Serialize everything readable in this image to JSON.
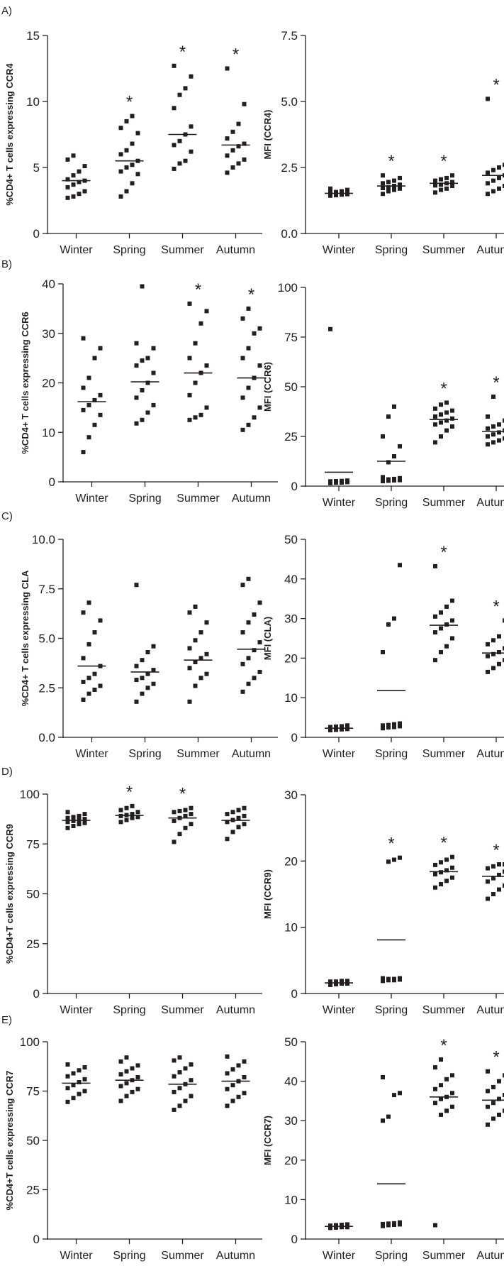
{
  "panel_letters": [
    "A)",
    "B)",
    "C)",
    "D)",
    "E)"
  ],
  "chart_data": [
    {
      "id": "A-left",
      "type": "scatter",
      "panel": "A)",
      "ylabel": "%CD4+ T cells expressing CCR4",
      "ylim": [
        0,
        15
      ],
      "yticks": [
        0,
        5,
        10,
        15
      ],
      "ytick_labels": [
        "0",
        "5",
        "10",
        "15"
      ],
      "categories": [
        "Winter",
        "Spring",
        "Summer",
        "Autumn"
      ],
      "series": [
        {
          "points": [
            2.7,
            2.8,
            3.0,
            3.2,
            3.5,
            3.7,
            3.9,
            4.0,
            4.1,
            4.4,
            4.7,
            5.1,
            5.6,
            5.9
          ],
          "mean": 4.0,
          "significant": false
        },
        {
          "points": [
            2.8,
            3.2,
            3.8,
            4.5,
            4.7,
            5.0,
            5.2,
            5.5,
            6.0,
            6.3,
            6.8,
            7.6,
            8.0,
            8.5,
            8.9
          ],
          "mean": 5.5,
          "significant": true
        },
        {
          "points": [
            4.9,
            5.3,
            5.5,
            6.2,
            6.7,
            7.0,
            7.5,
            8.1,
            9.5,
            10.5,
            11.0,
            11.9,
            12.7
          ],
          "mean": 7.5,
          "significant": true
        },
        {
          "points": [
            4.6,
            5.0,
            5.3,
            5.6,
            5.9,
            6.3,
            6.6,
            6.8,
            7.2,
            7.7,
            8.3,
            9.8,
            12.5
          ],
          "mean": 6.7,
          "significant": true
        }
      ]
    },
    {
      "id": "A-right",
      "type": "scatter",
      "panel": "",
      "ylabel": "MFI (CCR4)",
      "ylim": [
        0,
        7.5
      ],
      "yticks": [
        0,
        2.5,
        5,
        7.5
      ],
      "ytick_labels": [
        "0.0",
        "2.5",
        "5.0",
        "7.5"
      ],
      "categories": [
        "Winter",
        "Spring",
        "Summer",
        "Autumn"
      ],
      "series": [
        {
          "points": [
            1.43,
            1.45,
            1.47,
            1.49,
            1.5,
            1.5,
            1.52,
            1.53,
            1.55,
            1.57,
            1.6,
            1.65,
            1.7
          ],
          "mean": 1.52,
          "significant": false
        },
        {
          "points": [
            1.5,
            1.6,
            1.65,
            1.7,
            1.72,
            1.75,
            1.8,
            1.85,
            1.9,
            1.95,
            2.0,
            2.1,
            2.2
          ],
          "mean": 1.8,
          "significant": true
        },
        {
          "points": [
            1.55,
            1.65,
            1.7,
            1.8,
            1.82,
            1.85,
            1.9,
            1.95,
            2.0,
            2.05,
            2.1,
            2.2
          ],
          "mean": 1.9,
          "significant": true
        },
        {
          "points": [
            1.5,
            1.6,
            1.7,
            1.8,
            1.9,
            2.0,
            2.1,
            2.2,
            2.3,
            2.4,
            2.5,
            2.6,
            5.1
          ],
          "mean": 2.2,
          "significant": true
        }
      ]
    },
    {
      "id": "B-left",
      "type": "scatter",
      "panel": "B)",
      "ylabel": "%CD4+ T cells expressing CCR6",
      "ylim": [
        0,
        40
      ],
      "yticks": [
        0,
        10,
        20,
        30,
        40
      ],
      "ytick_labels": [
        "0",
        "10",
        "20",
        "30",
        "40"
      ],
      "categories": [
        "Winter",
        "Spring",
        "Summer",
        "Autumn"
      ],
      "series": [
        {
          "points": [
            6.0,
            9.0,
            11.5,
            13.5,
            14.5,
            15.5,
            16.5,
            17.5,
            19.0,
            21.0,
            25.0,
            27.0,
            29.0
          ],
          "mean": 16.2,
          "significant": false
        },
        {
          "points": [
            11.8,
            12.5,
            14.0,
            15.5,
            17.0,
            18.5,
            20.0,
            22.0,
            23.5,
            24.5,
            25.0,
            27.0,
            28.0,
            39.5
          ],
          "mean": 20.2,
          "significant": false
        },
        {
          "points": [
            12.5,
            13.0,
            13.5,
            15.0,
            17.5,
            20.0,
            22.0,
            23.5,
            25.0,
            28.0,
            32.0,
            34.5,
            36.0
          ],
          "mean": 22.0,
          "significant": true
        },
        {
          "points": [
            10.5,
            11.5,
            13.0,
            15.0,
            17.0,
            19.0,
            21.0,
            23.5,
            25.0,
            27.0,
            30.0,
            31.0,
            33.0,
            35.0
          ],
          "mean": 21.0,
          "significant": true
        }
      ]
    },
    {
      "id": "B-right",
      "type": "scatter",
      "panel": "",
      "ylabel": "MFI (CCR6)",
      "ylim": [
        0,
        100
      ],
      "yticks": [
        0,
        25,
        50,
        75,
        100
      ],
      "ytick_labels": [
        "0",
        "25",
        "50",
        "75",
        "100"
      ],
      "categories": [
        "Winter",
        "Spring",
        "Summer",
        "Autumn"
      ],
      "series": [
        {
          "points": [
            1.5,
            1.7,
            1.8,
            2.0,
            2.0,
            2.1,
            2.2,
            2.3,
            2.4,
            2.5,
            2.6,
            2.8,
            79.0
          ],
          "mean": 7.0,
          "significant": false
        },
        {
          "points": [
            2.5,
            2.7,
            2.9,
            3.0,
            3.2,
            3.4,
            3.6,
            4.0,
            4.5,
            12.0,
            15.0,
            20.0,
            25.0,
            35.0,
            40.0
          ],
          "mean": 12.5,
          "significant": false
        },
        {
          "points": [
            22.0,
            25.0,
            28.0,
            30.0,
            31.0,
            32.0,
            33.0,
            34.0,
            35.0,
            36.0,
            37.0,
            38.0,
            39.0,
            41.0,
            42.0
          ],
          "mean": 33.5,
          "significant": true
        },
        {
          "points": [
            21.0,
            22.0,
            23.0,
            24.0,
            25.0,
            26.0,
            27.0,
            28.0,
            29.0,
            30.0,
            31.0,
            33.0,
            35.0,
            45.0
          ],
          "mean": 27.5,
          "significant": true
        }
      ]
    },
    {
      "id": "C-left",
      "type": "scatter",
      "panel": "C)",
      "ylabel": "%CD4+ T cells expressing CLA",
      "ylim": [
        0,
        10
      ],
      "yticks": [
        0,
        2.5,
        5,
        7.5,
        10
      ],
      "ytick_labels": [
        "0.0",
        "2.5",
        "5.0",
        "7.5",
        "10.0"
      ],
      "categories": [
        "Winter",
        "Spring",
        "Summer",
        "Autumn"
      ],
      "series": [
        {
          "points": [
            1.9,
            2.2,
            2.4,
            2.6,
            2.8,
            3.0,
            3.2,
            3.6,
            4.0,
            4.7,
            5.3,
            5.9,
            6.3,
            6.8
          ],
          "mean": 3.6,
          "significant": false
        },
        {
          "points": [
            1.8,
            2.2,
            2.5,
            2.7,
            2.9,
            3.0,
            3.2,
            3.4,
            3.6,
            3.9,
            4.3,
            4.6,
            7.7
          ],
          "mean": 3.3,
          "significant": false
        },
        {
          "points": [
            1.8,
            2.6,
            3.0,
            3.2,
            3.5,
            3.8,
            4.0,
            4.2,
            4.5,
            4.9,
            5.3,
            5.8,
            6.3,
            6.6
          ],
          "mean": 3.9,
          "significant": false
        },
        {
          "points": [
            2.3,
            2.7,
            3.0,
            3.3,
            3.7,
            4.0,
            4.4,
            4.8,
            5.3,
            5.8,
            6.2,
            6.8,
            7.7,
            8.0
          ],
          "mean": 4.45,
          "significant": false
        }
      ]
    },
    {
      "id": "C-right",
      "type": "scatter",
      "panel": "",
      "ylabel": "MFI (CLA)",
      "ylim": [
        0,
        50
      ],
      "yticks": [
        0,
        10,
        20,
        30,
        40,
        50
      ],
      "ytick_labels": [
        "0",
        "10",
        "20",
        "30",
        "40",
        "50"
      ],
      "categories": [
        "Winter",
        "Spring",
        "Summer",
        "Autumn"
      ],
      "series": [
        {
          "points": [
            1.8,
            1.9,
            2.0,
            2.1,
            2.2,
            2.3,
            2.4,
            2.5,
            2.6,
            2.7,
            2.8,
            3.0
          ],
          "mean": 2.3,
          "significant": false
        },
        {
          "points": [
            2.3,
            2.5,
            2.6,
            2.8,
            3.0,
            3.1,
            3.3,
            3.5,
            21.5,
            28.5,
            30.0,
            43.5
          ],
          "mean": 11.8,
          "significant": false
        },
        {
          "points": [
            19.5,
            21.5,
            23.0,
            25.0,
            26.5,
            27.5,
            28.5,
            29.5,
            30.5,
            31.5,
            33.0,
            34.5,
            43.2
          ],
          "mean": 28.3,
          "significant": true
        },
        {
          "points": [
            16.5,
            17.5,
            18.5,
            19.5,
            20.5,
            21.0,
            21.5,
            22.5,
            23.5,
            24.5,
            25.5,
            29.5
          ],
          "mean": 21.3,
          "significant": true
        }
      ]
    },
    {
      "id": "D-left",
      "type": "scatter",
      "panel": "D)",
      "ylabel": "%CD4+T cells expressing CCR9",
      "ylim": [
        0,
        100
      ],
      "yticks": [
        0,
        25,
        50,
        75,
        100
      ],
      "ytick_labels": [
        "0",
        "25",
        "50",
        "75",
        "100"
      ],
      "categories": [
        "Winter",
        "Spring",
        "Summer",
        "Autumn"
      ],
      "series": [
        {
          "points": [
            83.0,
            84.0,
            85.0,
            85.5,
            86.0,
            86.5,
            87.0,
            87.5,
            88.0,
            88.5,
            89.0,
            90.0,
            91.0
          ],
          "mean": 86.8,
          "significant": false
        },
        {
          "points": [
            86.0,
            87.0,
            88.0,
            88.5,
            89.0,
            89.5,
            90.0,
            91.0,
            92.0,
            93.0,
            94.0
          ],
          "mean": 89.3,
          "significant": true
        },
        {
          "points": [
            76.0,
            80.0,
            83.0,
            85.0,
            86.5,
            88.0,
            89.0,
            90.0,
            91.0,
            91.5,
            92.0,
            93.0
          ],
          "mean": 88.0,
          "significant": true
        },
        {
          "points": [
            77.5,
            81.0,
            83.5,
            85.0,
            86.0,
            87.0,
            88.0,
            89.0,
            90.0,
            91.0,
            92.0,
            93.0
          ],
          "mean": 86.8,
          "significant": false
        }
      ]
    },
    {
      "id": "D-right",
      "type": "scatter",
      "panel": "",
      "ylabel": "MFI (CCR9)",
      "ylim": [
        0,
        30
      ],
      "yticks": [
        0,
        10,
        20,
        30
      ],
      "ytick_labels": [
        "0",
        "10",
        "20",
        "30"
      ],
      "categories": [
        "Winter",
        "Spring",
        "Summer",
        "Autumn"
      ],
      "series": [
        {
          "points": [
            1.3,
            1.4,
            1.5,
            1.5,
            1.6,
            1.6,
            1.7,
            1.7,
            1.8,
            1.8,
            1.9,
            1.9
          ],
          "mean": 1.6,
          "significant": false
        },
        {
          "points": [
            1.9,
            2.0,
            2.0,
            2.1,
            2.1,
            2.2,
            2.2,
            2.3,
            2.3,
            19.9,
            20.2,
            20.5
          ],
          "mean": 8.1,
          "significant": true
        },
        {
          "points": [
            16.0,
            16.5,
            17.0,
            17.5,
            18.0,
            18.3,
            18.6,
            19.0,
            19.4,
            19.8,
            20.2,
            20.6
          ],
          "mean": 18.4,
          "significant": true
        },
        {
          "points": [
            14.3,
            15.0,
            15.7,
            16.3,
            16.9,
            17.4,
            17.9,
            18.4,
            18.9,
            19.2,
            19.5,
            19.5
          ],
          "mean": 17.7,
          "significant": true
        }
      ]
    },
    {
      "id": "E-left",
      "type": "scatter",
      "panel": "E)",
      "ylabel": "%CD4+T cells expressing CCR7",
      "ylim": [
        0,
        100
      ],
      "yticks": [
        0,
        25,
        50,
        75,
        100
      ],
      "ytick_labels": [
        "0",
        "25",
        "50",
        "75",
        "100"
      ],
      "categories": [
        "Winter",
        "Spring",
        "Summer",
        "Autumn"
      ],
      "series": [
        {
          "points": [
            69.5,
            71.5,
            73.5,
            75.0,
            76.5,
            78.0,
            79.5,
            81.0,
            82.5,
            84.0,
            85.5,
            87.0,
            88.5
          ],
          "mean": 79.0,
          "significant": false
        },
        {
          "points": [
            70.0,
            72.5,
            74.5,
            76.0,
            77.5,
            79.0,
            80.5,
            82.0,
            83.5,
            85.0,
            86.5,
            88.0,
            90.0,
            92.0
          ],
          "mean": 80.5,
          "significant": false
        },
        {
          "points": [
            65.5,
            67.5,
            70.0,
            72.5,
            74.5,
            76.5,
            78.5,
            80.5,
            82.5,
            84.5,
            86.5,
            88.5,
            90.5,
            92.0
          ],
          "mean": 78.5,
          "significant": false
        },
        {
          "points": [
            67.5,
            70.0,
            72.0,
            74.0,
            76.0,
            78.0,
            80.0,
            82.0,
            84.0,
            86.0,
            88.0,
            90.0,
            92.5
          ],
          "mean": 80.0,
          "significant": false
        }
      ]
    },
    {
      "id": "E-right",
      "type": "scatter",
      "panel": "",
      "ylabel": "MFI (CCR7)",
      "ylim": [
        0,
        50
      ],
      "yticks": [
        0,
        10,
        20,
        30,
        40,
        50
      ],
      "ytick_labels": [
        "0",
        "10",
        "20",
        "30",
        "40",
        "50"
      ],
      "categories": [
        "Winter",
        "Spring",
        "Summer",
        "Autumn"
      ],
      "series": [
        {
          "points": [
            2.8,
            2.9,
            3.0,
            3.0,
            3.1,
            3.2,
            3.3,
            3.3,
            3.4,
            3.5,
            3.6,
            3.7
          ],
          "mean": 3.2,
          "significant": false
        },
        {
          "points": [
            3.3,
            3.5,
            3.6,
            3.7,
            3.8,
            3.9,
            4.0,
            4.2,
            30.0,
            31.0,
            36.5,
            37.0,
            41.0
          ],
          "mean": 14.0,
          "significant": false
        },
        {
          "points": [
            3.5,
            31.5,
            32.5,
            33.5,
            34.5,
            35.5,
            36.0,
            37.0,
            38.0,
            39.0,
            40.5,
            41.5,
            43.5,
            45.5
          ],
          "mean": 36.0,
          "significant": true
        },
        {
          "points": [
            29.0,
            30.5,
            31.5,
            32.5,
            33.5,
            34.5,
            35.5,
            36.5,
            37.5,
            38.5,
            40.0,
            41.5,
            42.5
          ],
          "mean": 35.2,
          "significant": true
        }
      ]
    }
  ]
}
